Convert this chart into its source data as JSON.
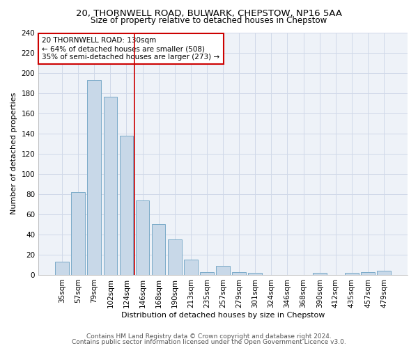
{
  "title1": "20, THORNWELL ROAD, BULWARK, CHEPSTOW, NP16 5AA",
  "title2": "Size of property relative to detached houses in Chepstow",
  "xlabel": "Distribution of detached houses by size in Chepstow",
  "ylabel": "Number of detached properties",
  "categories": [
    "35sqm",
    "57sqm",
    "79sqm",
    "102sqm",
    "124sqm",
    "146sqm",
    "168sqm",
    "190sqm",
    "213sqm",
    "235sqm",
    "257sqm",
    "279sqm",
    "301sqm",
    "324sqm",
    "346sqm",
    "368sqm",
    "390sqm",
    "412sqm",
    "435sqm",
    "457sqm",
    "479sqm"
  ],
  "values": [
    13,
    82,
    193,
    176,
    138,
    74,
    50,
    35,
    15,
    3,
    9,
    3,
    2,
    0,
    0,
    0,
    2,
    0,
    2,
    3,
    4
  ],
  "bar_color": "#c8d8e8",
  "bar_edge_color": "#7aaac8",
  "red_line_x": 4.5,
  "annotation_title": "20 THORNWELL ROAD: 130sqm",
  "annotation_line1": "← 64% of detached houses are smaller (508)",
  "annotation_line2": "35% of semi-detached houses are larger (273) →",
  "annotation_box_color": "#ffffff",
  "annotation_box_edge": "#cc0000",
  "red_line_color": "#cc0000",
  "footer1": "Contains HM Land Registry data © Crown copyright and database right 2024.",
  "footer2": "Contains public sector information licensed under the Open Government Licence v3.0.",
  "ylim": [
    0,
    240
  ],
  "yticks": [
    0,
    20,
    40,
    60,
    80,
    100,
    120,
    140,
    160,
    180,
    200,
    220,
    240
  ],
  "title1_fontsize": 9.5,
  "title2_fontsize": 8.5,
  "xlabel_fontsize": 8,
  "ylabel_fontsize": 8,
  "tick_fontsize": 7.5,
  "ann_fontsize": 7.5,
  "footer_fontsize": 6.5,
  "grid_color": "#d0d8e8",
  "bg_color": "#eef2f8"
}
